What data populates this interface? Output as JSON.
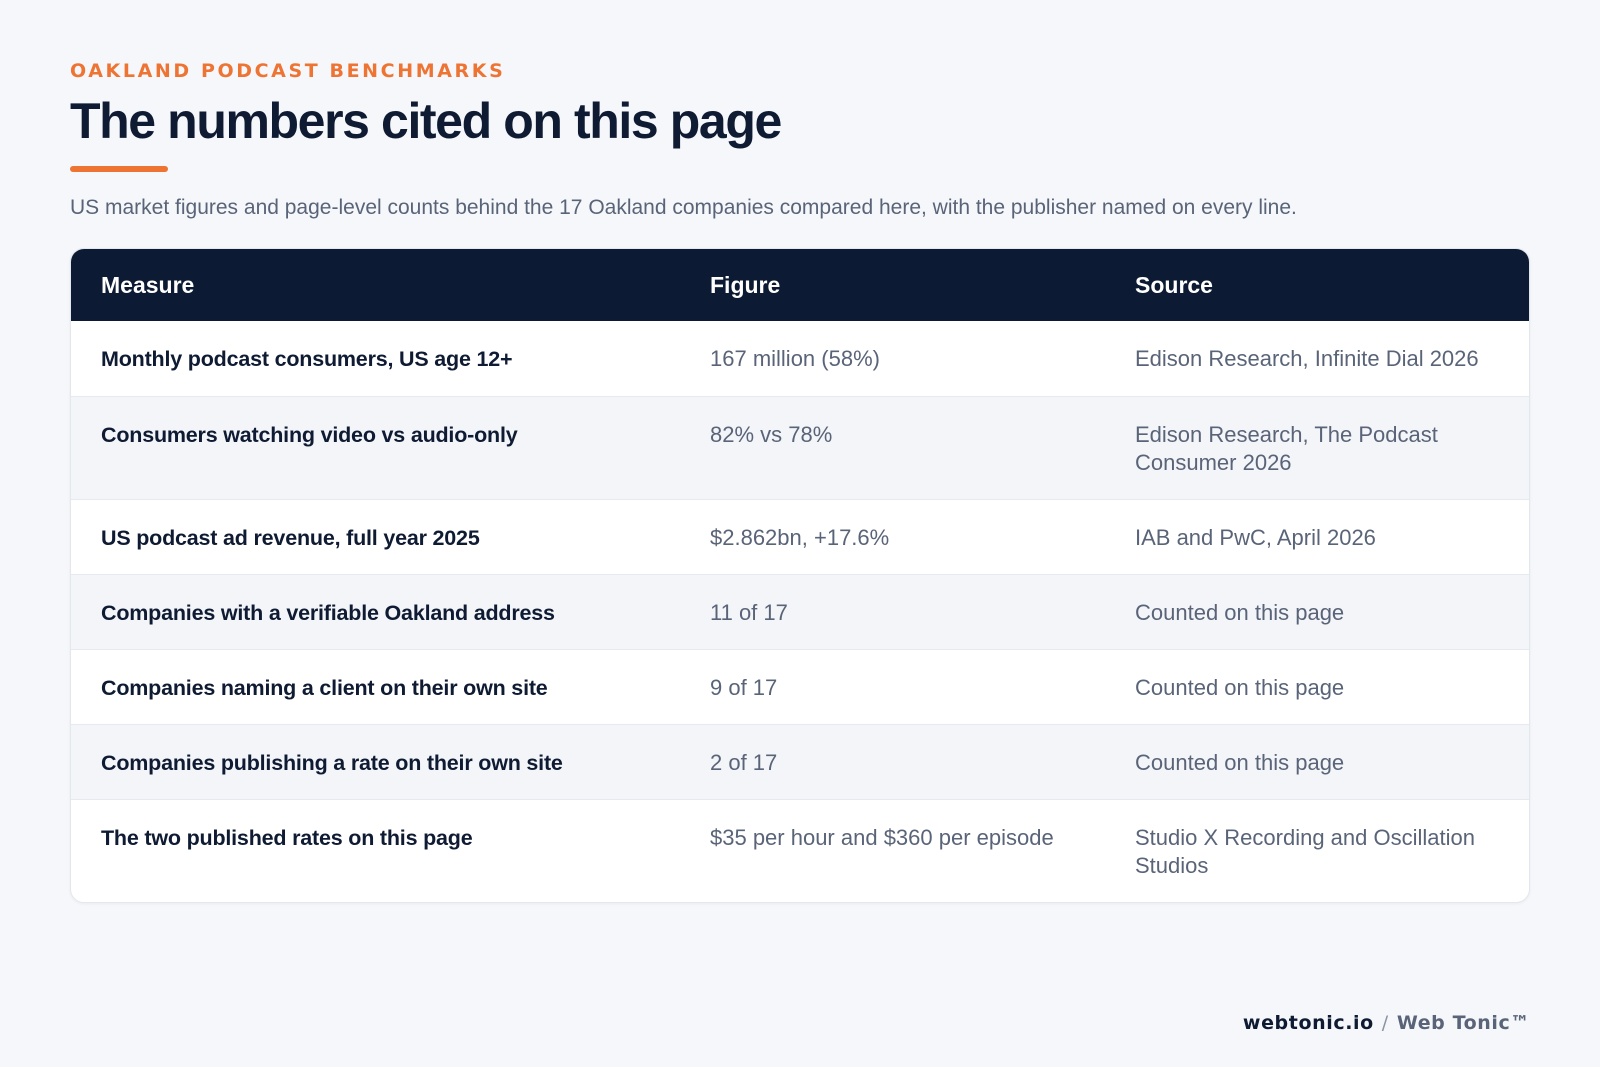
{
  "header": {
    "eyebrow": "OAKLAND PODCAST BENCHMARKS",
    "title": "The numbers cited on this page",
    "subtitle": "US market figures and page-level counts behind the 17 Oakland companies compared here, with the publisher named on every line."
  },
  "table": {
    "columns": [
      "Measure",
      "Figure",
      "Source"
    ],
    "rows": [
      {
        "measure": "Monthly podcast consumers, US age 12+",
        "figure": "167 million (58%)",
        "source": "Edison Research, Infinite Dial 2026"
      },
      {
        "measure": "Consumers watching video vs audio-only",
        "figure": "82% vs 78%",
        "source": "Edison Research, The Podcast Consumer 2026"
      },
      {
        "measure": "US podcast ad revenue, full year 2025",
        "figure": "$2.862bn, +17.6%",
        "source": "IAB and PwC, April 2026"
      },
      {
        "measure": "Companies with a verifiable Oakland address",
        "figure": "11 of 17",
        "source": "Counted on this page"
      },
      {
        "measure": "Companies naming a client on their own site",
        "figure": "9 of 17",
        "source": "Counted on this page"
      },
      {
        "measure": "Companies publishing a rate on their own site",
        "figure": "2 of 17",
        "source": "Counted on this page"
      },
      {
        "measure": "The two published rates on this page",
        "figure": "$35 per hour and $360 per episode",
        "source": "Studio X Recording and Oscillation Studios"
      }
    ]
  },
  "footer": {
    "domain": "webtonic.io",
    "separator": "/",
    "brand": "Web Tonic™"
  },
  "colors": {
    "accent": "#ee7433",
    "header_bg": "#0d1a33",
    "page_bg": "#f5f7fa"
  }
}
